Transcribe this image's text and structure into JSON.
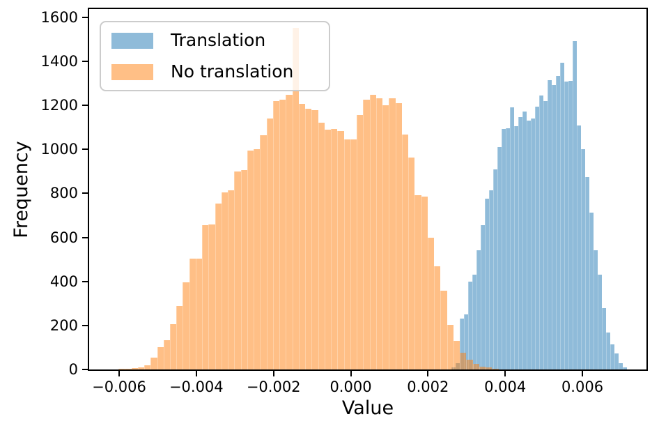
{
  "figure": {
    "background": "#ffffff",
    "spine_color": "#000000"
  },
  "chart_data": {
    "type": "histogram",
    "title": "",
    "xlabel": "Value",
    "ylabel": "Frequency",
    "xlim": [
      -0.006776,
      0.00766
    ],
    "ylim": [
      0,
      1637
    ],
    "grid": false,
    "xticks": [
      -0.006,
      -0.004,
      -0.002,
      0.0,
      0.002,
      0.004,
      0.006
    ],
    "xtick_labels": [
      "−0.006",
      "−0.004",
      "−0.002",
      "0.000",
      "0.002",
      "0.004",
      "0.006"
    ],
    "yticks": [
      0,
      200,
      400,
      600,
      800,
      1000,
      1200,
      1400,
      1600
    ],
    "ytick_labels": [
      "0",
      "200",
      "400",
      "600",
      "800",
      "1000",
      "1200",
      "1400",
      "1600"
    ],
    "legend": {
      "position": "upper left",
      "entries": [
        {
          "label": "Translation",
          "color": "rgba(31,119,180,0.5)"
        },
        {
          "label": "No translation",
          "color": "rgba(255,127,14,0.5)"
        }
      ]
    },
    "series": [
      {
        "name": "Translation",
        "color": "rgba(31,119,180,0.5)",
        "z": "series-blue",
        "bin_start": 0.002608,
        "bin_width": 0.0001083,
        "heights": [
          10,
          30,
          232,
          250,
          400,
          430,
          540,
          655,
          775,
          815,
          910,
          1010,
          1092,
          1095,
          1190,
          1105,
          1146,
          1172,
          1130,
          1140,
          1194,
          1245,
          1219,
          1314,
          1292,
          1334,
          1394,
          1308,
          1311,
          1492,
          1108,
          1000,
          873,
          714,
          540,
          432,
          279,
          168,
          114,
          73,
          28,
          10
        ]
      },
      {
        "name": "No translation",
        "color": "rgba(255,127,14,0.5)",
        "z": "series-orange",
        "bin_start": -0.006018,
        "bin_width": 0.0001669,
        "heights": [
          2,
          4,
          6,
          9,
          19,
          54,
          101,
          132,
          206,
          289,
          397,
          504,
          505,
          657,
          660,
          755,
          805,
          815,
          898,
          905,
          994,
          1000,
          1064,
          1140,
          1219,
          1225,
          1248,
          1550,
          1205,
          1184,
          1178,
          1121,
          1089,
          1092,
          1083,
          1045,
          1045,
          1156,
          1226,
          1248,
          1232,
          1200,
          1232,
          1210,
          1067,
          962,
          791,
          784,
          597,
          470,
          359,
          203,
          130,
          76,
          45,
          25,
          14,
          8,
          4
        ]
      }
    ]
  }
}
